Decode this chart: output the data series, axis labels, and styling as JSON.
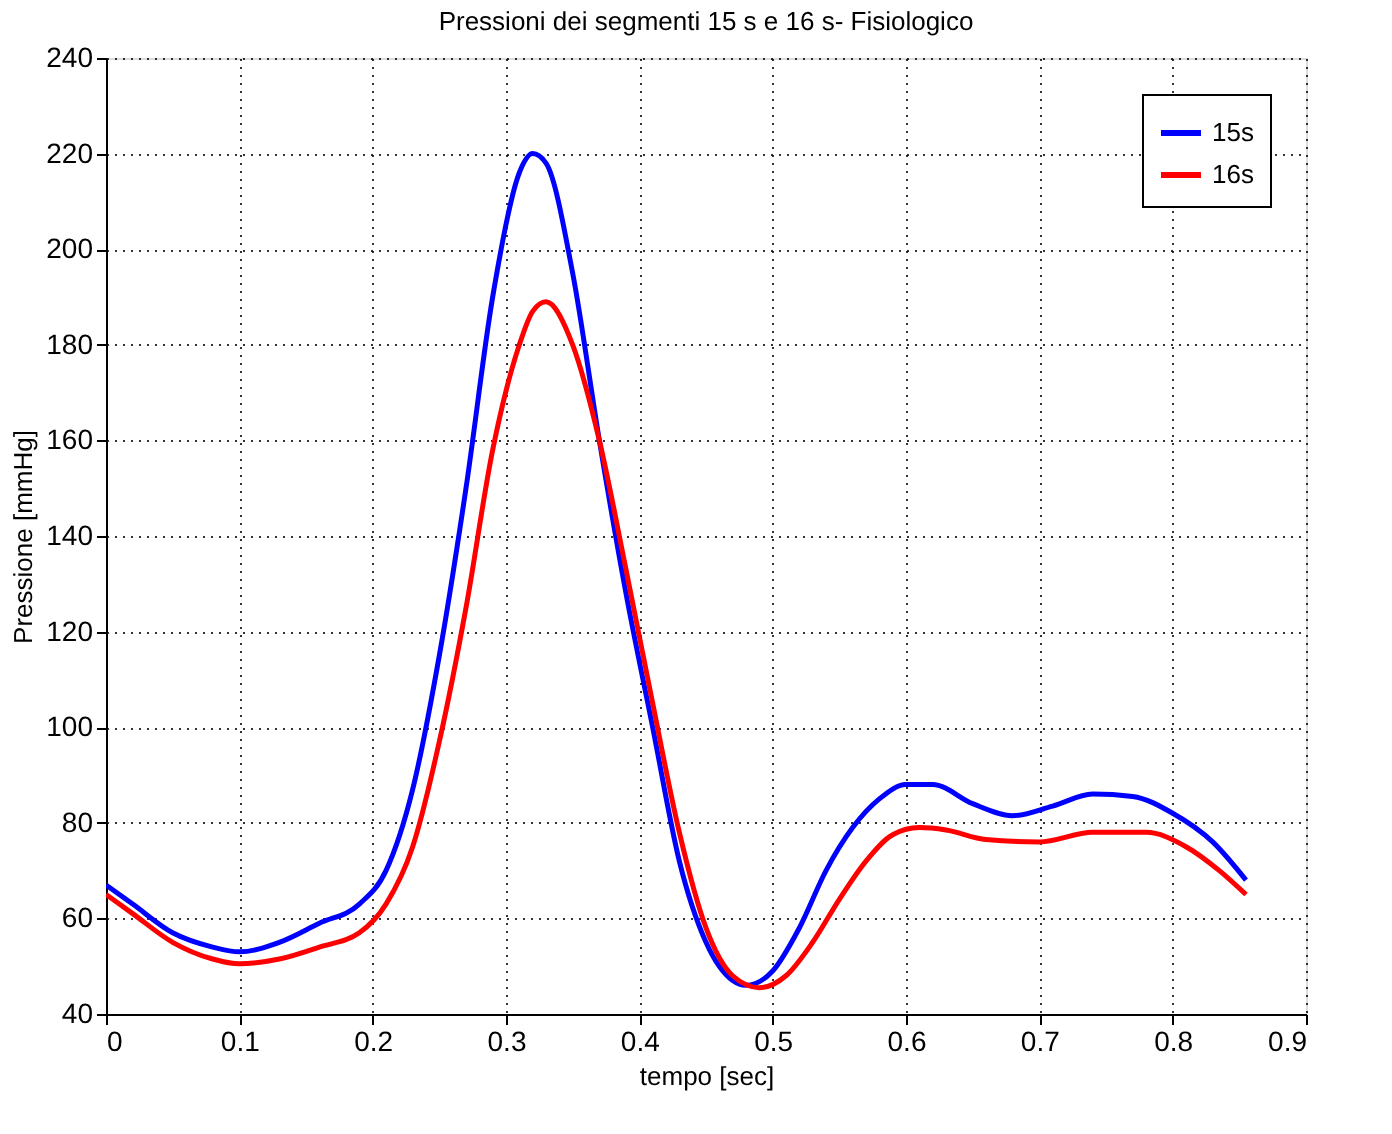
{
  "chart_data": {
    "type": "line",
    "title": "Pressioni dei segmenti 15 s e 16 s- Fisiologico",
    "xlabel": "tempo [sec]",
    "ylabel": "Pressione [mmHg]",
    "xlim": [
      0,
      0.9
    ],
    "xticks": [
      {
        "value": 0,
        "label": "0"
      },
      0.1,
      0.2,
      0.3,
      0.4,
      0.5,
      0.6,
      0.7,
      0.8,
      0.9
    ],
    "ylim": [
      40,
      240
    ],
    "yticks": [
      40,
      60,
      80,
      100,
      120,
      140,
      160,
      180,
      200,
      220,
      240
    ],
    "grid": true,
    "legend": "top right",
    "marker": "none",
    "line_style": "solid",
    "series": [
      {
        "name": "15s",
        "color": "#0000ff",
        "x": [
          0,
          0.02,
          0.05,
          0.08,
          0.1,
          0.13,
          0.16,
          0.19,
          0.21,
          0.23,
          0.25,
          0.27,
          0.29,
          0.31,
          0.32,
          0.33,
          0.35,
          0.37,
          0.39,
          0.41,
          0.43,
          0.45,
          0.47,
          0.48,
          0.5,
          0.52,
          0.54,
          0.56,
          0.58,
          0.6,
          0.62,
          0.65,
          0.68,
          0.71,
          0.74,
          0.77,
          0.8,
          0.83,
          0.855
        ],
        "values": [
          67,
          63,
          57,
          54,
          53,
          55,
          59,
          63,
          70,
          87,
          115,
          150,
          190,
          216,
          220,
          218,
          195,
          160,
          128,
          100,
          72,
          55,
          47,
          46,
          49,
          58,
          70,
          79,
          85,
          88,
          88,
          84,
          81.5,
          83.5,
          86,
          85.5,
          82,
          76,
          68
        ]
      },
      {
        "name": "16s",
        "color": "#ff0000",
        "x": [
          0,
          0.02,
          0.05,
          0.08,
          0.1,
          0.13,
          0.16,
          0.19,
          0.21,
          0.23,
          0.25,
          0.27,
          0.29,
          0.31,
          0.32,
          0.33,
          0.35,
          0.37,
          0.39,
          0.41,
          0.43,
          0.45,
          0.47,
          0.49,
          0.51,
          0.53,
          0.55,
          0.57,
          0.59,
          0.61,
          0.63,
          0.66,
          0.7,
          0.74,
          0.78,
          0.81,
          0.835,
          0.855
        ],
        "values": [
          65,
          61,
          55,
          51.5,
          50.5,
          51.5,
          54,
          57,
          63,
          75,
          97,
          125,
          158,
          180,
          187,
          189,
          180,
          160,
          133,
          105,
          78,
          58,
          48,
          45.5,
          48,
          55,
          64,
          72,
          77.5,
          79,
          78.5,
          76.5,
          76,
          78,
          78,
          75,
          70,
          65
        ]
      }
    ]
  }
}
